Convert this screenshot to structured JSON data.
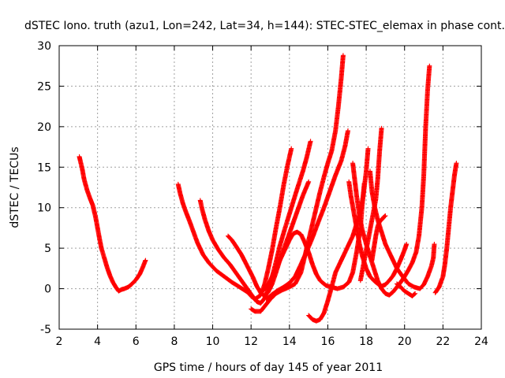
{
  "chart_data": {
    "type": "scatter",
    "title": "dSTEC Iono. truth (azu1, Lon=242, Lat=34, h=144): STEC-STEC_elemax in phase cont.",
    "xlabel": "GPS time / hours of day 145 of year 2011",
    "ylabel": "dSTEC  / TECUs",
    "xlim": [
      2,
      24
    ],
    "ylim": [
      -5,
      30
    ],
    "xticks": [
      2,
      4,
      6,
      8,
      10,
      12,
      14,
      16,
      18,
      20,
      22,
      24
    ],
    "yticks": [
      -5,
      0,
      5,
      10,
      15,
      20,
      25,
      30
    ],
    "grid": true,
    "marker": "+",
    "color": "#ff0000",
    "series": [
      {
        "points": [
          [
            3.05,
            16.3
          ],
          [
            3.1,
            15.8
          ],
          [
            3.2,
            14.8
          ],
          [
            3.3,
            13.5
          ],
          [
            3.45,
            12.2
          ],
          [
            3.6,
            11.2
          ],
          [
            3.75,
            10.3
          ],
          [
            3.9,
            8.8
          ],
          [
            4.0,
            7.5
          ],
          [
            4.1,
            6.2
          ],
          [
            4.2,
            5.0
          ],
          [
            4.35,
            3.8
          ],
          [
            4.5,
            2.6
          ],
          [
            4.65,
            1.6
          ],
          [
            4.8,
            0.8
          ],
          [
            4.95,
            0.2
          ],
          [
            5.1,
            -0.3
          ],
          [
            5.25,
            -0.1
          ],
          [
            5.4,
            0.0
          ],
          [
            5.6,
            0.2
          ],
          [
            5.8,
            0.6
          ],
          [
            6.0,
            1.1
          ],
          [
            6.2,
            1.8
          ],
          [
            6.35,
            2.6
          ],
          [
            6.5,
            3.5
          ]
        ]
      },
      {
        "points": [
          [
            8.2,
            12.9
          ],
          [
            8.3,
            11.8
          ],
          [
            8.45,
            10.5
          ],
          [
            8.6,
            9.5
          ],
          [
            8.8,
            8.3
          ],
          [
            9.0,
            7.0
          ],
          [
            9.2,
            5.7
          ],
          [
            9.5,
            4.2
          ],
          [
            9.8,
            3.2
          ],
          [
            10.2,
            2.2
          ],
          [
            10.6,
            1.5
          ],
          [
            11.0,
            0.8
          ],
          [
            11.4,
            0.2
          ],
          [
            11.8,
            -0.4
          ],
          [
            12.0,
            -0.9
          ],
          [
            12.2,
            -1.3
          ],
          [
            12.5,
            -0.8
          ],
          [
            12.7,
            0.5
          ],
          [
            12.9,
            2.5
          ],
          [
            13.1,
            4.8
          ],
          [
            13.3,
            7.5
          ],
          [
            13.5,
            10.0
          ],
          [
            13.7,
            12.8
          ],
          [
            13.9,
            15.2
          ],
          [
            14.1,
            17.3
          ]
        ]
      },
      {
        "points": [
          [
            9.35,
            10.9
          ],
          [
            9.45,
            9.8
          ],
          [
            9.6,
            8.5
          ],
          [
            9.8,
            7.1
          ],
          [
            10.0,
            6.0
          ],
          [
            10.3,
            4.8
          ],
          [
            10.6,
            3.8
          ],
          [
            10.9,
            3.0
          ],
          [
            11.2,
            2.0
          ],
          [
            11.5,
            1.0
          ],
          [
            11.8,
            0.0
          ],
          [
            12.1,
            -1.0
          ],
          [
            12.3,
            -1.6
          ],
          [
            12.5,
            -1.8
          ],
          [
            12.7,
            -1.2
          ],
          [
            12.9,
            0.0
          ],
          [
            13.1,
            1.5
          ],
          [
            13.3,
            3.3
          ],
          [
            13.5,
            5.3
          ],
          [
            13.8,
            7.7
          ],
          [
            14.1,
            10.0
          ],
          [
            14.4,
            12.3
          ],
          [
            14.7,
            14.5
          ],
          [
            14.9,
            16.2
          ],
          [
            15.1,
            18.2
          ]
        ]
      },
      {
        "points": [
          [
            10.8,
            6.5
          ],
          [
            11.0,
            6.0
          ],
          [
            11.2,
            5.3
          ],
          [
            11.5,
            4.2
          ],
          [
            11.8,
            2.8
          ],
          [
            12.1,
            1.4
          ],
          [
            12.3,
            0.3
          ],
          [
            12.5,
            -0.5
          ],
          [
            12.7,
            -0.9
          ],
          [
            12.9,
            -0.4
          ],
          [
            13.1,
            0.6
          ],
          [
            13.3,
            2.0
          ],
          [
            13.5,
            3.5
          ],
          [
            13.8,
            5.5
          ],
          [
            14.1,
            7.5
          ],
          [
            14.4,
            9.5
          ],
          [
            14.7,
            11.5
          ],
          [
            15.0,
            13.2
          ]
        ]
      },
      {
        "points": [
          [
            12.0,
            -2.5
          ],
          [
            12.2,
            -2.8
          ],
          [
            12.5,
            -2.8
          ],
          [
            12.7,
            -2.2
          ],
          [
            13.0,
            -1.3
          ],
          [
            13.3,
            -0.6
          ],
          [
            13.6,
            -0.2
          ],
          [
            14.0,
            0.2
          ],
          [
            14.3,
            0.6
          ],
          [
            14.6,
            2.0
          ],
          [
            14.8,
            4.0
          ],
          [
            15.0,
            6.0
          ],
          [
            15.2,
            8.0
          ],
          [
            15.4,
            10.0
          ],
          [
            15.6,
            12.0
          ],
          [
            15.8,
            13.8
          ],
          [
            16.0,
            15.5
          ],
          [
            16.2,
            17.0
          ],
          [
            16.4,
            19.5
          ],
          [
            16.55,
            22.5
          ],
          [
            16.7,
            26.0
          ],
          [
            16.8,
            28.8
          ]
        ]
      },
      {
        "points": [
          [
            12.8,
            -1.3
          ],
          [
            13.1,
            -0.7
          ],
          [
            13.4,
            -0.2
          ],
          [
            13.7,
            0.2
          ],
          [
            14.0,
            0.7
          ],
          [
            14.3,
            1.5
          ],
          [
            14.6,
            3.0
          ],
          [
            14.9,
            4.6
          ],
          [
            15.2,
            6.3
          ],
          [
            15.5,
            8.2
          ],
          [
            15.8,
            10.0
          ],
          [
            16.1,
            12.0
          ],
          [
            16.4,
            14.0
          ],
          [
            16.7,
            15.8
          ],
          [
            16.9,
            17.6
          ],
          [
            17.05,
            19.5
          ]
        ]
      },
      {
        "points": [
          [
            12.5,
            -0.5
          ],
          [
            12.8,
            0.2
          ],
          [
            13.0,
            1.0
          ],
          [
            13.2,
            2.0
          ],
          [
            13.4,
            3.0
          ],
          [
            13.6,
            4.0
          ],
          [
            13.8,
            5.0
          ],
          [
            14.0,
            6.0
          ],
          [
            14.2,
            6.8
          ],
          [
            14.4,
            7.0
          ],
          [
            14.6,
            6.7
          ],
          [
            14.8,
            5.7
          ],
          [
            15.0,
            4.5
          ],
          [
            15.2,
            3.0
          ],
          [
            15.4,
            1.8
          ],
          [
            15.6,
            1.0
          ],
          [
            15.9,
            0.4
          ],
          [
            16.2,
            0.2
          ],
          [
            16.5,
            0.0
          ],
          [
            16.8,
            0.2
          ],
          [
            17.1,
            0.8
          ],
          [
            17.3,
            2.0
          ],
          [
            17.5,
            4.5
          ],
          [
            17.7,
            7.5
          ],
          [
            17.8,
            10.5
          ],
          [
            17.9,
            13.0
          ]
        ]
      },
      {
        "points": [
          [
            15.0,
            -3.3
          ],
          [
            15.2,
            -3.8
          ],
          [
            15.4,
            -4.0
          ],
          [
            15.6,
            -3.8
          ],
          [
            15.8,
            -3.0
          ],
          [
            16.0,
            -1.5
          ],
          [
            16.2,
            0.2
          ],
          [
            16.4,
            2.0
          ],
          [
            16.7,
            3.5
          ],
          [
            17.0,
            5.0
          ],
          [
            17.3,
            6.5
          ],
          [
            17.5,
            8.0
          ],
          [
            17.7,
            9.5
          ],
          [
            17.85,
            11.5
          ],
          [
            18.0,
            14.5
          ],
          [
            18.1,
            17.3
          ]
        ]
      },
      {
        "points": [
          [
            17.1,
            13.2
          ],
          [
            17.2,
            11.5
          ],
          [
            17.35,
            9.5
          ],
          [
            17.5,
            7.5
          ],
          [
            17.65,
            5.5
          ],
          [
            17.8,
            4.0
          ],
          [
            18.0,
            2.5
          ],
          [
            18.2,
            1.5
          ],
          [
            18.4,
            1.0
          ],
          [
            18.6,
            0.6
          ],
          [
            18.8,
            0.3
          ],
          [
            19.0,
            0.5
          ],
          [
            19.2,
            1.0
          ],
          [
            19.4,
            1.6
          ],
          [
            19.6,
            2.5
          ],
          [
            19.8,
            3.6
          ],
          [
            20.0,
            4.8
          ],
          [
            20.1,
            5.5
          ]
        ]
      },
      {
        "points": [
          [
            17.3,
            15.5
          ],
          [
            17.4,
            13.5
          ],
          [
            17.5,
            11.5
          ],
          [
            17.65,
            9.0
          ],
          [
            17.8,
            7.2
          ],
          [
            18.0,
            5.5
          ],
          [
            18.2,
            4.0
          ],
          [
            18.4,
            2.5
          ],
          [
            18.6,
            1.0
          ],
          [
            18.8,
            0.0
          ],
          [
            19.0,
            -0.6
          ],
          [
            19.2,
            -0.8
          ],
          [
            19.4,
            -0.4
          ],
          [
            19.6,
            0.2
          ],
          [
            19.8,
            0.8
          ],
          [
            20.0,
            1.5
          ],
          [
            20.2,
            2.3
          ],
          [
            20.4,
            3.2
          ],
          [
            20.6,
            4.5
          ],
          [
            20.75,
            6.5
          ],
          [
            20.9,
            10.0
          ],
          [
            21.0,
            14.0
          ],
          [
            21.1,
            20.0
          ],
          [
            21.2,
            24.5
          ],
          [
            21.3,
            27.5
          ]
        ]
      },
      {
        "points": [
          [
            17.7,
            1.0
          ],
          [
            17.9,
            3.5
          ],
          [
            18.1,
            6.0
          ],
          [
            18.3,
            8.5
          ],
          [
            18.5,
            11.0
          ],
          [
            18.6,
            13.5
          ],
          [
            18.7,
            17.0
          ],
          [
            18.8,
            19.8
          ]
        ]
      },
      {
        "points": [
          [
            18.2,
            14.5
          ],
          [
            18.3,
            12.0
          ],
          [
            18.45,
            10.0
          ],
          [
            18.6,
            8.5
          ],
          [
            18.8,
            7.0
          ],
          [
            19.0,
            5.5
          ],
          [
            19.3,
            4.0
          ],
          [
            19.6,
            2.5
          ],
          [
            19.9,
            1.5
          ],
          [
            20.2,
            0.6
          ],
          [
            20.5,
            0.2
          ],
          [
            20.8,
            0.0
          ],
          [
            21.0,
            0.5
          ],
          [
            21.2,
            1.5
          ],
          [
            21.4,
            2.8
          ],
          [
            21.5,
            3.8
          ],
          [
            21.55,
            5.5
          ]
        ]
      },
      {
        "points": [
          [
            18.3,
            3.5
          ],
          [
            18.4,
            5.0
          ],
          [
            18.5,
            6.5
          ],
          [
            18.6,
            7.7
          ],
          [
            18.7,
            8.3
          ],
          [
            18.8,
            8.5
          ],
          [
            18.9,
            8.8
          ],
          [
            19.0,
            9.0
          ]
        ]
      },
      {
        "points": [
          [
            19.6,
            0.6
          ],
          [
            19.8,
            0.2
          ],
          [
            20.0,
            -0.3
          ],
          [
            20.2,
            -0.6
          ],
          [
            20.4,
            -0.9
          ],
          [
            20.55,
            -0.6
          ]
        ]
      },
      {
        "points": [
          [
            21.6,
            -0.5
          ],
          [
            21.8,
            0.2
          ],
          [
            22.0,
            1.5
          ],
          [
            22.1,
            3.0
          ],
          [
            22.2,
            5.0
          ],
          [
            22.3,
            7.5
          ],
          [
            22.4,
            10.0
          ],
          [
            22.5,
            12.0
          ],
          [
            22.6,
            14.0
          ],
          [
            22.7,
            15.5
          ]
        ]
      }
    ]
  }
}
